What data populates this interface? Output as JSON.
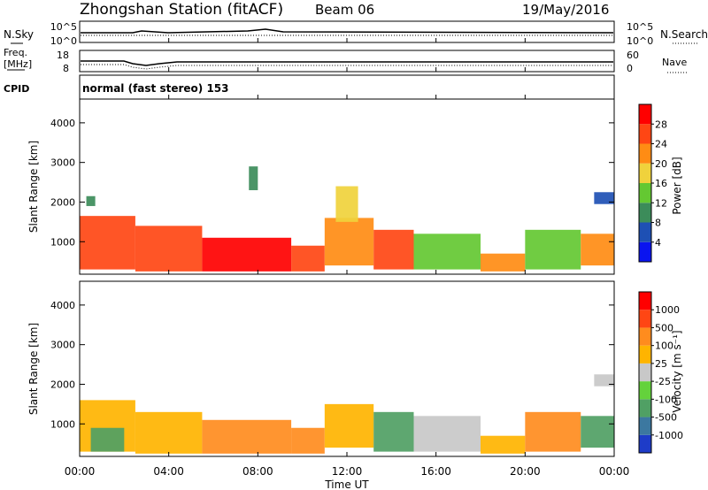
{
  "header": {
    "station": "Zhongshan Station (fitACF)",
    "beam": "Beam 06",
    "date": "19/May/2016"
  },
  "noise_panel": {
    "left_label": "N.Sky",
    "right_label": "N.Search",
    "left_ticks": [
      "10^5",
      "10^0"
    ],
    "right_ticks": [
      "10^5",
      "10^0"
    ]
  },
  "freq_panel": {
    "left_label_line1": "Freq.",
    "left_label_line2": "[MHz]",
    "right_label": "Nave",
    "left_ticks": [
      "18",
      "8"
    ],
    "right_ticks": [
      "60",
      "0"
    ]
  },
  "cpid_panel": {
    "label": "CPID",
    "mode_text": "normal (fast stereo) 153"
  },
  "axes": {
    "ylabel": "Slant Range [km]",
    "yticks": [
      "1000",
      "2000",
      "3000",
      "4000"
    ],
    "xlabel": "Time UT",
    "xticks": [
      "00:00",
      "04:00",
      "08:00",
      "12:00",
      "16:00",
      "20:00",
      "00:00"
    ]
  },
  "power_colorbar": {
    "label": "Power [dB]",
    "ticks": [
      "4",
      "8",
      "12",
      "16",
      "20",
      "24",
      "28"
    ],
    "colors": [
      "#0a14f0",
      "#1e50b4",
      "#3c8c5a",
      "#64c832",
      "#f0d23c",
      "#ff8c14",
      "#ff4614",
      "#ff0000"
    ]
  },
  "velocity_colorbar": {
    "label": "Velocity [m s⁻¹]",
    "ticks": [
      "1000",
      "500",
      "100",
      "25",
      "-25",
      "-100",
      "-500",
      "-1000"
    ],
    "colors": [
      "#1e3cc8",
      "#3c78a0",
      "#50a064",
      "#64d23c",
      "#c8c8c8",
      "#ffb400",
      "#ff8c1e",
      "#ff4614",
      "#ff0000"
    ]
  },
  "chart_data": {
    "type": "heatmap",
    "title": "Zhongshan Station (fitACF) Beam 06",
    "xlabel": "Time UT",
    "ylabel": "Slant Range [km]",
    "xlim_hours": [
      0,
      24
    ],
    "ylim_km": [
      180,
      4600
    ],
    "noise_sky_log10": 4.3,
    "noise_search_log10": 4.0,
    "freq_mhz": 10.5,
    "nave": 22,
    "power_regions": [
      {
        "t0": 0.0,
        "t1": 2.5,
        "r0": 300,
        "r1": 1650,
        "db": 24
      },
      {
        "t0": 2.5,
        "t1": 5.5,
        "r0": 250,
        "r1": 1400,
        "db": 26
      },
      {
        "t0": 5.5,
        "t1": 9.5,
        "r0": 250,
        "r1": 1100,
        "db": 28
      },
      {
        "t0": 9.5,
        "t1": 11.0,
        "r0": 250,
        "r1": 900,
        "db": 27
      },
      {
        "t0": 11.0,
        "t1": 13.2,
        "r0": 400,
        "r1": 1600,
        "db": 20
      },
      {
        "t0": 13.2,
        "t1": 15.0,
        "r0": 300,
        "r1": 1300,
        "db": 24
      },
      {
        "t0": 15.0,
        "t1": 18.0,
        "r0": 300,
        "r1": 1200,
        "db": 15
      },
      {
        "t0": 18.0,
        "t1": 20.0,
        "r0": 250,
        "r1": 700,
        "db": 20
      },
      {
        "t0": 20.0,
        "t1": 22.5,
        "r0": 300,
        "r1": 1300,
        "db": 14
      },
      {
        "t0": 22.5,
        "t1": 24.0,
        "r0": 400,
        "r1": 1200,
        "db": 22
      },
      {
        "t0": 23.1,
        "t1": 24.0,
        "r0": 1950,
        "r1": 2250,
        "db": 6
      },
      {
        "t0": 0.3,
        "t1": 0.7,
        "r0": 1900,
        "r1": 2150,
        "db": 10
      },
      {
        "t0": 11.5,
        "t1": 12.5,
        "r0": 1500,
        "r1": 2400,
        "db": 18
      },
      {
        "t0": 7.6,
        "t1": 8.0,
        "r0": 2300,
        "r1": 2900,
        "db": 10
      }
    ],
    "velocity_regions": [
      {
        "t0": 0.0,
        "t1": 2.5,
        "r0": 300,
        "r1": 1600,
        "v": -100
      },
      {
        "t0": 0.5,
        "t1": 2.0,
        "r0": 300,
        "r1": 900,
        "v": 300
      },
      {
        "t0": 2.5,
        "t1": 5.5,
        "r0": 250,
        "r1": 1300,
        "v": -100
      },
      {
        "t0": 5.5,
        "t1": 9.5,
        "r0": 250,
        "r1": 1100,
        "v": -120
      },
      {
        "t0": 9.5,
        "t1": 11.0,
        "r0": 250,
        "r1": 900,
        "v": -200
      },
      {
        "t0": 11.0,
        "t1": 13.2,
        "r0": 400,
        "r1": 1500,
        "v": -100
      },
      {
        "t0": 13.2,
        "t1": 15.0,
        "r0": 300,
        "r1": 1300,
        "v": 100
      },
      {
        "t0": 15.0,
        "t1": 18.0,
        "r0": 300,
        "r1": 1200,
        "v": 0
      },
      {
        "t0": 18.0,
        "t1": 20.0,
        "r0": 250,
        "r1": 700,
        "v": -100
      },
      {
        "t0": 20.0,
        "t1": 22.5,
        "r0": 300,
        "r1": 1300,
        "v": -150
      },
      {
        "t0": 22.5,
        "t1": 24.0,
        "r0": 400,
        "r1": 1200,
        "v": 100
      },
      {
        "t0": 23.1,
        "t1": 24.0,
        "r0": 1950,
        "r1": 2250,
        "v": 0
      }
    ]
  }
}
